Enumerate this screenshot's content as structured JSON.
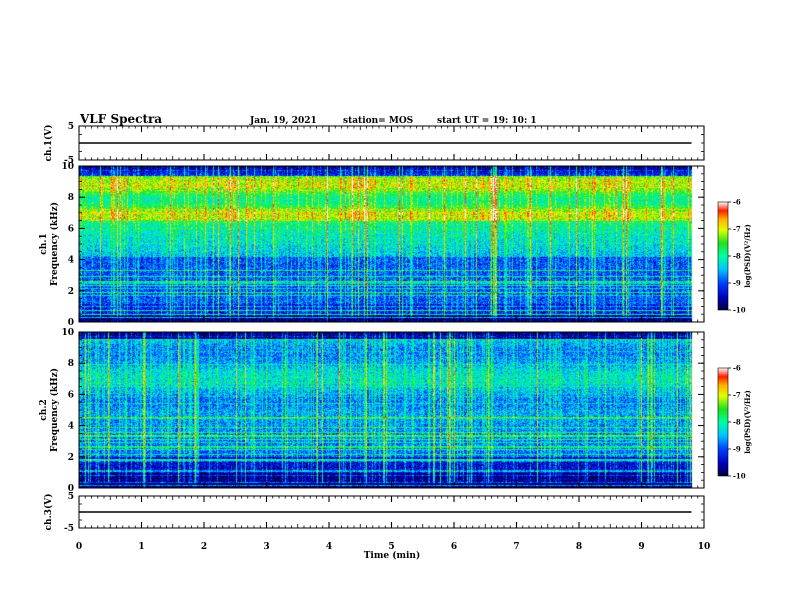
{
  "header": {
    "title": "VLF Spectra",
    "date": "Jan. 19, 2021",
    "station": "station= MOS",
    "start": "start  UT =   19: 10: 1"
  },
  "colors": {
    "palette": [
      "#000040",
      "#0000c0",
      "#0040ff",
      "#00c8ff",
      "#00ffa0",
      "#20e020",
      "#e0ff00",
      "#ffb000",
      "#ff2000",
      "#ffffff"
    ]
  },
  "chart_data": [
    {
      "type": "line",
      "panel": "ch1-voltage",
      "ylabel": "ch.1(V)",
      "ylim": [
        -5,
        5
      ],
      "yticks": [
        "5",
        "-5"
      ],
      "series": [
        {
          "x": [
            0,
            9.8
          ],
          "y": [
            0,
            0
          ]
        }
      ]
    },
    {
      "type": "heatmap",
      "panel": "ch1-spectrogram",
      "ylabel_top": "ch.1",
      "ylabel": "Frequency (kHz)",
      "ylim": [
        0,
        10
      ],
      "xlim": [
        0,
        10
      ],
      "yticks": [
        "10",
        "8",
        "6",
        "4",
        "2",
        "0"
      ],
      "colorbar": {
        "label": "log(PSD)(V²/Hz)",
        "range": [
          -10,
          -6
        ],
        "ticks": [
          "-6",
          "-7",
          "-8",
          "-9",
          "-10"
        ]
      }
    },
    {
      "type": "heatmap",
      "panel": "ch2-spectrogram",
      "ylabel_top": "ch.2",
      "ylabel": "Frequency (kHz)",
      "ylim": [
        0,
        10
      ],
      "xlim": [
        0,
        10
      ],
      "yticks": [
        "10",
        "8",
        "6",
        "4",
        "2",
        "0"
      ],
      "colorbar": {
        "label": "log(PSD)(V²/Hz)",
        "range": [
          -10,
          -6
        ],
        "ticks": [
          "-6",
          "-7",
          "-8",
          "-9",
          "-10"
        ]
      }
    },
    {
      "type": "line",
      "panel": "ch3-voltage",
      "ylabel": "ch.3(V)",
      "ylim": [
        -5,
        5
      ],
      "yticks": [
        "5",
        "-5"
      ],
      "xlabel": "Time (min)",
      "xlim": [
        0,
        10
      ],
      "xticks": [
        "0",
        "1",
        "2",
        "3",
        "4",
        "5",
        "6",
        "7",
        "8",
        "9",
        "10"
      ],
      "series": [
        {
          "x": [
            0,
            9.8
          ],
          "y": [
            0,
            0
          ]
        }
      ]
    }
  ]
}
